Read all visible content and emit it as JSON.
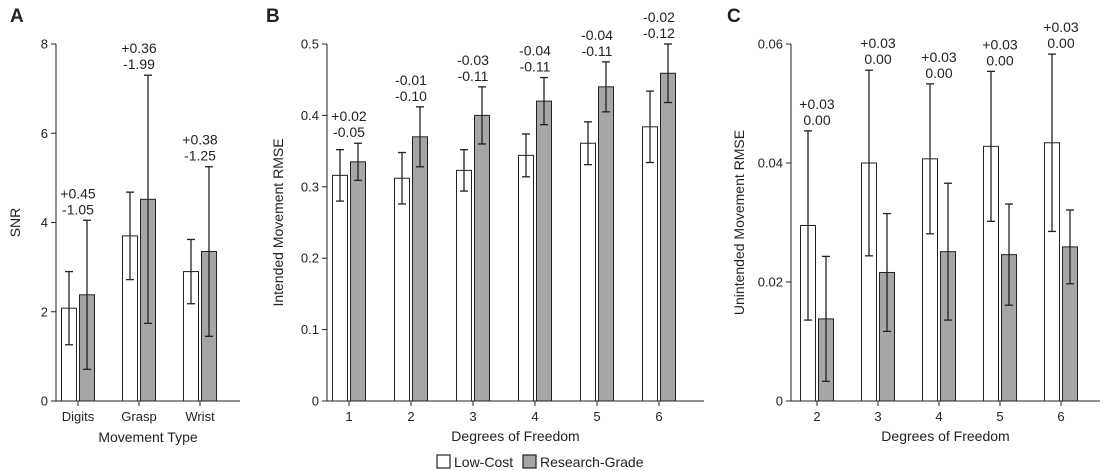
{
  "chart_data": [
    {
      "panel": "A",
      "type": "bar",
      "xlabel": "Movement Type",
      "ylabel": "SNR",
      "ylim": [
        0,
        8
      ],
      "yticks": [
        "0",
        "2",
        "4",
        "6",
        "8"
      ],
      "categories": [
        "Digits",
        "Grasp",
        "Wrist"
      ],
      "series": [
        {
          "name": "Low-Cost",
          "values": [
            2.08,
            3.7,
            2.9
          ],
          "err": [
            0.82,
            0.98,
            0.72
          ]
        },
        {
          "name": "Research-Grade",
          "values": [
            2.38,
            4.52,
            3.35
          ],
          "err": [
            1.67,
            2.78,
            1.9
          ]
        }
      ],
      "annotations": [
        {
          "upper": "+0.45",
          "lower": "-1.05"
        },
        {
          "upper": "+0.36",
          "lower": "-1.99"
        },
        {
          "upper": "+0.38",
          "lower": "-1.25"
        }
      ]
    },
    {
      "panel": "B",
      "type": "bar",
      "xlabel": "Degrees of Freedom",
      "ylabel": "Intended Movement RMSE",
      "ylim": [
        0,
        0.5
      ],
      "yticks": [
        "0",
        "0.1",
        "0.2",
        "0.3",
        "0.4",
        "0.5"
      ],
      "categories": [
        "1",
        "2",
        "3",
        "4",
        "5",
        "6"
      ],
      "series": [
        {
          "name": "Low-Cost",
          "values": [
            0.316,
            0.312,
            0.323,
            0.344,
            0.361,
            0.384
          ],
          "err": [
            0.036,
            0.036,
            0.029,
            0.03,
            0.03,
            0.05
          ]
        },
        {
          "name": "Research-Grade",
          "values": [
            0.335,
            0.37,
            0.4,
            0.42,
            0.44,
            0.459
          ],
          "err": [
            0.026,
            0.042,
            0.04,
            0.033,
            0.035,
            0.041
          ]
        }
      ],
      "annotations": [
        {
          "upper": "+0.02",
          "lower": "-0.05"
        },
        {
          "upper": "-0.01",
          "lower": "-0.10"
        },
        {
          "upper": "-0.03",
          "lower": "-0.11"
        },
        {
          "upper": "-0.04",
          "lower": "-0.11"
        },
        {
          "upper": "-0.04",
          "lower": "-0.11"
        },
        {
          "upper": "-0.02",
          "lower": "-0.12"
        }
      ]
    },
    {
      "panel": "C",
      "type": "bar",
      "xlabel": "Degrees of Freedom",
      "ylabel": "Unintended Movement RMSE",
      "ylim": [
        0,
        0.06
      ],
      "yticks": [
        "0",
        "0.02",
        "0.04",
        "0.06"
      ],
      "categories": [
        "2",
        "3",
        "4",
        "5",
        "6"
      ],
      "series": [
        {
          "name": "Low-Cost",
          "values": [
            0.0295,
            0.04,
            0.0407,
            0.0428,
            0.0434
          ],
          "err": [
            0.0159,
            0.0156,
            0.0126,
            0.0126,
            0.0149
          ]
        },
        {
          "name": "Research-Grade",
          "values": [
            0.0138,
            0.0216,
            0.0251,
            0.0246,
            0.0259
          ],
          "err": [
            0.0105,
            0.0099,
            0.0115,
            0.0085,
            0.0062
          ]
        }
      ],
      "annotations": [
        {
          "upper": "+0.03",
          "lower": "0.00"
        },
        {
          "upper": "+0.03",
          "lower": "0.00"
        },
        {
          "upper": "+0.03",
          "lower": "0.00"
        },
        {
          "upper": "+0.03",
          "lower": "0.00"
        },
        {
          "upper": "+0.03",
          "lower": "0.00"
        }
      ]
    }
  ],
  "legend": {
    "items": [
      {
        "label": "Low-Cost",
        "color": "#ffffff"
      },
      {
        "label": "Research-Grade",
        "color": "#a6a6a6"
      }
    ]
  },
  "colors": {
    "low_cost": "#ffffff",
    "research_grade": "#a6a6a6",
    "outline": "#222222"
  }
}
